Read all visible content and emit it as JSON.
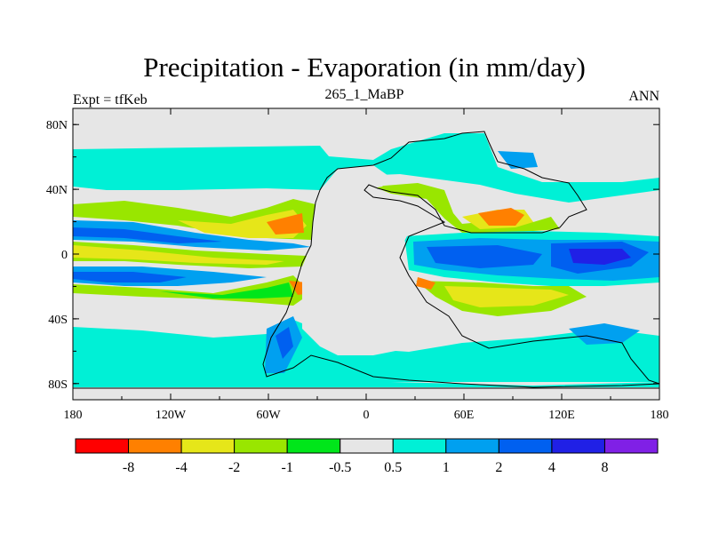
{
  "title": "Precipitation - Evaporation (in mm/day)",
  "subtitle": "265_1_MaBP",
  "left_label": "Expt = tfKeb",
  "right_label": "ANN",
  "map": {
    "lon_ticks": [
      "180",
      "120W",
      "60W",
      "0",
      "60E",
      "120E",
      "180"
    ],
    "lat_ticks": [
      "80N",
      "40N",
      "0",
      "40S",
      "80S"
    ],
    "lat_values": [
      80,
      40,
      0,
      -40,
      -80
    ],
    "lon_range": [
      -180,
      180
    ],
    "lat_range": [
      -90,
      90
    ],
    "background_color": "#e6e6e6"
  },
  "colorbar": {
    "colors": [
      "#ff0000",
      "#ff8000",
      "#e6e619",
      "#99e600",
      "#00e61a",
      "#e6e6e6",
      "#00f0d6",
      "#00a0f0",
      "#0060f0",
      "#2020e6",
      "#8020e6"
    ],
    "labels": [
      "-8",
      "-4",
      "-2",
      "-1",
      "-0.5",
      "0.5",
      "1",
      "2",
      "4",
      "8"
    ]
  }
}
